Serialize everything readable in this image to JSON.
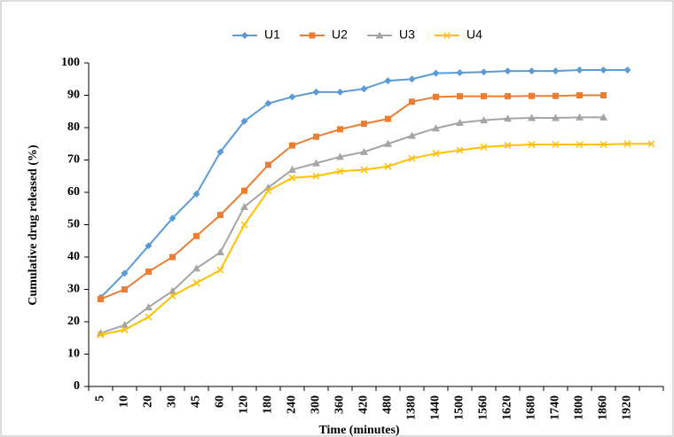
{
  "chart_data": {
    "type": "line",
    "x_label": "Time (minutes)",
    "y_label": "Cumulative drug released (%)",
    "categories": [
      "5",
      "10",
      "20",
      "30",
      "45",
      "60",
      "120",
      "180",
      "240",
      "300",
      "360",
      "420",
      "480",
      "1380",
      "1440",
      "1500",
      "1560",
      "1620",
      "1680",
      "1740",
      "1800",
      "1860",
      "1920",
      null
    ],
    "series": [
      {
        "name": "U1",
        "color": "#5b9bd5",
        "marker": "diamond",
        "values": [
          27.5,
          35,
          43.5,
          52,
          59.5,
          72.5,
          82,
          87.5,
          89.5,
          91,
          91,
          92,
          94.5,
          95,
          96.8,
          97,
          97.2,
          97.5,
          97.5,
          97.5,
          97.8,
          97.8,
          97.8,
          null
        ]
      },
      {
        "name": "U2",
        "color": "#ed7d31",
        "marker": "square",
        "values": [
          27,
          30,
          35.5,
          40,
          46.5,
          53,
          60.5,
          68.5,
          74.5,
          77.2,
          79.5,
          81.2,
          82.7,
          88,
          89.5,
          89.7,
          89.7,
          89.7,
          89.8,
          89.8,
          90,
          90,
          null,
          null
        ]
      },
      {
        "name": "U3",
        "color": "#a5a5a5",
        "marker": "triangle",
        "values": [
          16.5,
          19,
          24.5,
          29.5,
          36.5,
          41.5,
          55.5,
          61.5,
          67,
          69,
          71,
          72.5,
          75,
          77.5,
          79.8,
          81.5,
          82.3,
          82.8,
          83,
          83,
          83.2,
          83.2,
          null,
          null
        ]
      },
      {
        "name": "U4",
        "color": "#ffc000",
        "marker": "x",
        "values": [
          16,
          17.5,
          21.5,
          28,
          32,
          36,
          50,
          60.5,
          64.5,
          65,
          66.5,
          67,
          68,
          70.5,
          72,
          73,
          74,
          74.5,
          74.8,
          74.8,
          74.8,
          74.8,
          75,
          75
        ]
      }
    ],
    "ylim": [
      0,
      100
    ],
    "yticks": [
      0,
      10,
      20,
      30,
      40,
      50,
      60,
      70,
      80,
      90,
      100
    ],
    "legend": "top",
    "grid": false
  }
}
